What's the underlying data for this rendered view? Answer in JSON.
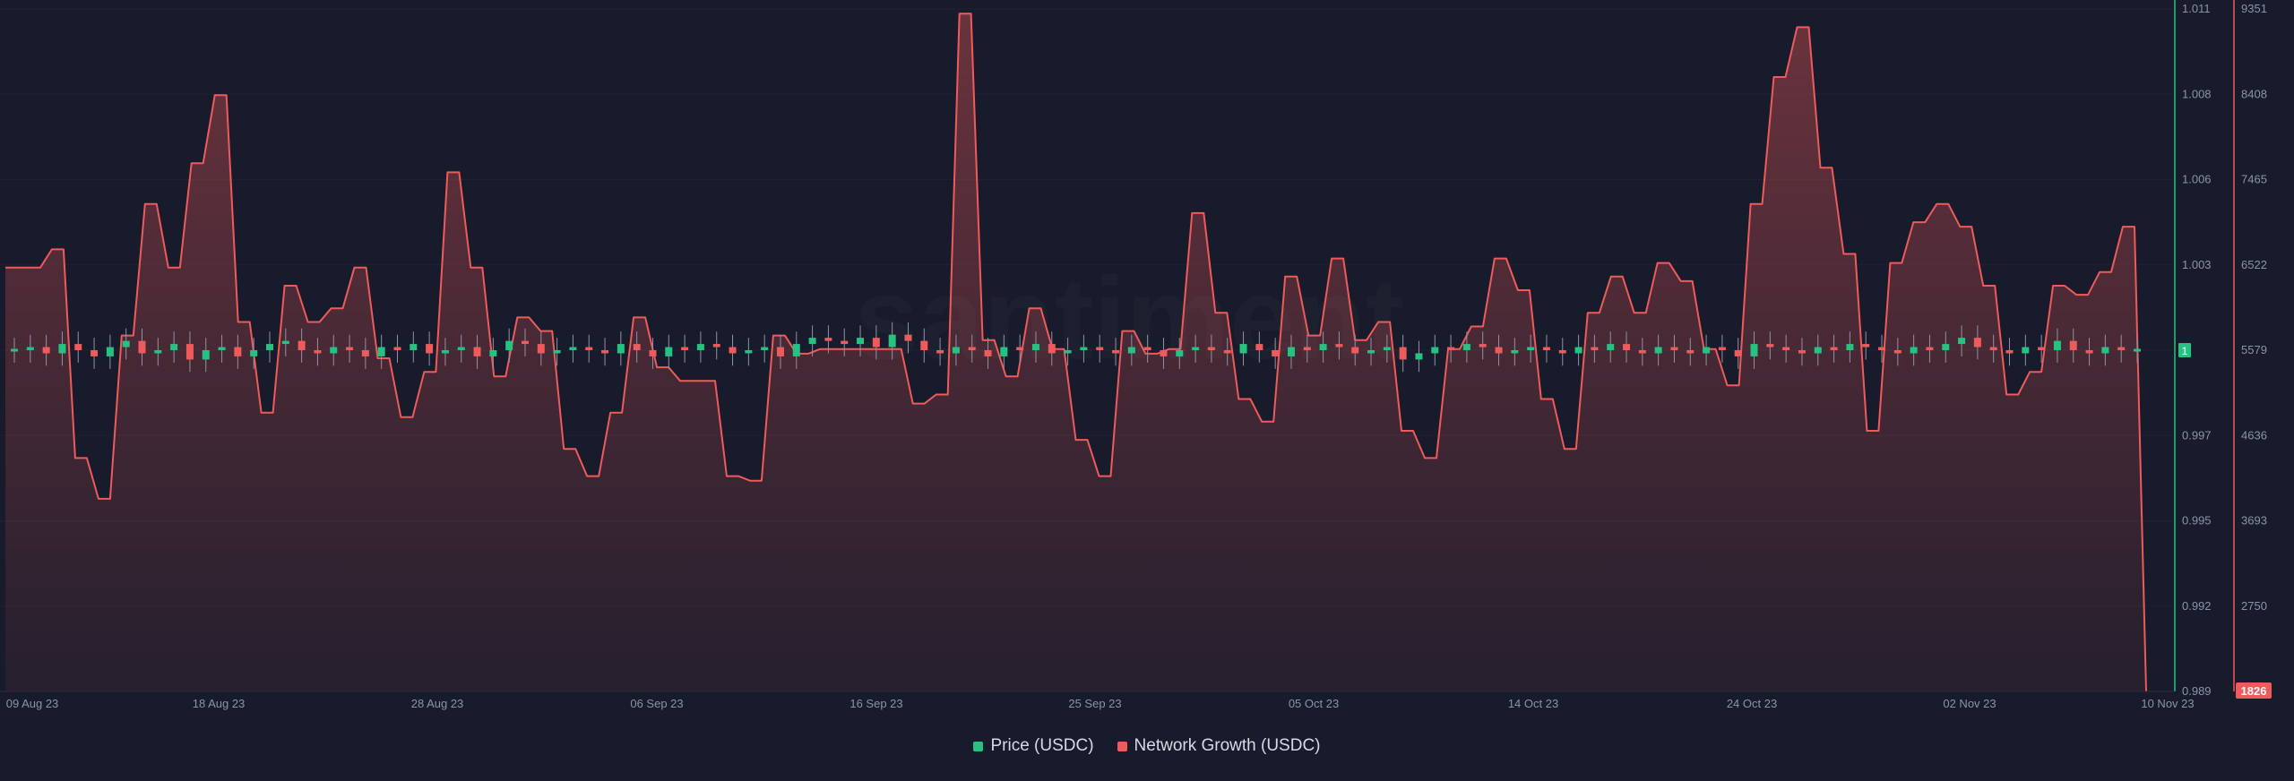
{
  "chart_data": {
    "type": "line",
    "watermark": "santiment",
    "x_ticks": [
      "09 Aug 23",
      "18 Aug 23",
      "28 Aug 23",
      "06 Sep 23",
      "16 Sep 23",
      "25 Sep 23",
      "05 Oct 23",
      "14 Oct 23",
      "24 Oct 23",
      "02 Nov 23",
      "10 Nov 23"
    ],
    "price_axis": {
      "ticks": [
        "1.011",
        "1.008",
        "1.006",
        "1.003",
        "1",
        "0.997",
        "0.995",
        "0.992",
        "0.989"
      ],
      "ylim": [
        0.989,
        1.011
      ],
      "current_label": "1",
      "color": "#26c281"
    },
    "network_axis": {
      "ticks": [
        "9351",
        "8408",
        "7465",
        "6522",
        "5579",
        "4636",
        "3693",
        "2750",
        "1826"
      ],
      "ylim": [
        1826,
        9351
      ],
      "current_label": "1826",
      "color": "#ef5a5a"
    },
    "series": [
      {
        "name": "Network Growth (USDC)",
        "color": "#ef5a5a",
        "values": [
          6500,
          6500,
          6500,
          6500,
          6700,
          6700,
          4400,
          4400,
          3950,
          3950,
          5750,
          5750,
          7200,
          7200,
          6500,
          6500,
          7650,
          7650,
          8400,
          8400,
          5900,
          5900,
          4900,
          4900,
          6300,
          6300,
          5900,
          5900,
          6050,
          6050,
          6500,
          6500,
          5500,
          5500,
          4850,
          4850,
          5350,
          5350,
          7550,
          7550,
          6500,
          6500,
          5300,
          5300,
          5950,
          5950,
          5800,
          5800,
          4500,
          4500,
          4200,
          4200,
          4900,
          4900,
          5950,
          5950,
          5400,
          5400,
          5250,
          5250,
          5250,
          5250,
          4200,
          4200,
          4150,
          4150,
          5750,
          5750,
          5550,
          5550,
          5600,
          5600,
          5600,
          5600,
          5600,
          5600,
          5600,
          5600,
          5000,
          5000,
          5100,
          5100,
          9300,
          9300,
          5700,
          5700,
          5300,
          5300,
          6050,
          6050,
          5600,
          5600,
          4600,
          4600,
          4200,
          4200,
          5800,
          5800,
          5550,
          5550,
          5600,
          5600,
          7100,
          7100,
          6000,
          6000,
          5050,
          5050,
          4800,
          4800,
          6400,
          6400,
          5750,
          5750,
          6600,
          6600,
          5700,
          5700,
          5900,
          5900,
          4700,
          4700,
          4400,
          4400,
          5600,
          5600,
          5850,
          5850,
          6600,
          6600,
          6250,
          6250,
          5050,
          5050,
          4500,
          4500,
          6000,
          6000,
          6400,
          6400,
          6000,
          6000,
          6550,
          6550,
          6350,
          6350,
          5600,
          5600,
          5200,
          5200,
          7200,
          7200,
          8600,
          8600,
          9150,
          9150,
          7600,
          7600,
          6650,
          6650,
          4700,
          4700,
          6550,
          6550,
          7000,
          7000,
          7200,
          7200,
          6950,
          6950,
          6300,
          6300,
          5100,
          5100,
          5350,
          5350,
          6300,
          6300,
          6200,
          6200,
          6450,
          6450,
          6950,
          6950,
          1826
        ]
      },
      {
        "name": "Price (USDC)",
        "color": "#26c281",
        "down_color": "#ef5a5a",
        "values": [
          1.0,
          1.0001,
          0.9999,
          1.0002,
          1.0,
          0.9998,
          1.0001,
          1.0003,
          0.9999,
          1.0,
          1.0002,
          0.9997,
          1.0,
          1.0001,
          0.9998,
          1.0,
          1.0002,
          1.0003,
          1.0,
          0.9999,
          1.0001,
          1.0,
          0.9998,
          1.0001,
          1.0,
          1.0002,
          0.9999,
          1.0,
          1.0001,
          0.9998,
          1.0,
          1.0003,
          1.0002,
          0.9999,
          1.0,
          1.0001,
          1.0,
          0.9999,
          1.0002,
          1.0,
          0.9998,
          1.0001,
          1.0,
          1.0002,
          1.0001,
          0.9999,
          1.0,
          1.0001,
          0.9998,
          1.0002,
          1.0004,
          1.0003,
          1.0002,
          1.0004,
          1.0001,
          1.0005,
          1.0003,
          1.0,
          0.9999,
          1.0001,
          1.0,
          0.9998,
          1.0001,
          1.0,
          1.0002,
          0.9999,
          1.0,
          1.0001,
          1.0,
          0.9999,
          1.0001,
          1.0,
          0.9998,
          1.0,
          1.0001,
          1.0,
          0.9999,
          1.0002,
          1.0,
          0.9998,
          1.0001,
          1.0,
          1.0002,
          1.0001,
          0.9999,
          1.0,
          1.0001,
          0.9997,
          0.9999,
          1.0001,
          1.0,
          1.0002,
          1.0001,
          0.9999,
          1.0,
          1.0001,
          1.0,
          0.9999,
          1.0001,
          1.0,
          1.0002,
          1.0,
          0.9999,
          1.0001,
          1.0,
          0.9999,
          1.0001,
          1.0,
          0.9998,
          1.0002,
          1.0001,
          1.0,
          0.9999,
          1.0001,
          1.0,
          1.0002,
          1.0001,
          1.0,
          0.9999,
          1.0001,
          1.0,
          1.0002,
          1.0004,
          1.0001,
          1.0,
          0.9999,
          1.0001,
          1.0,
          1.0003,
          1.0,
          0.9999,
          1.0001,
          1.0,
          1.0
        ]
      }
    ]
  },
  "legend": [
    {
      "label": "Price (USDC)",
      "color": "#26c281"
    },
    {
      "label": "Network Growth (USDC)",
      "color": "#ef5a5a"
    }
  ]
}
